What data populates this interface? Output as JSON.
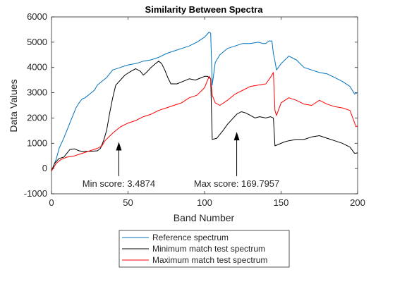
{
  "chart_data": {
    "type": "line",
    "title": "Similarity Between Spectra",
    "xlabel": "Band Number",
    "ylabel": "Data Values",
    "xlim": [
      0,
      200
    ],
    "ylim": [
      -1000,
      6000
    ],
    "xticks": [
      0,
      50,
      100,
      150,
      200
    ],
    "yticks": [
      -1000,
      0,
      1000,
      2000,
      3000,
      4000,
      5000,
      6000
    ],
    "xtick_labels": [
      "0",
      "50",
      "100",
      "150",
      "200"
    ],
    "ytick_labels": [
      "-1000",
      "0",
      "1000",
      "2000",
      "3000",
      "4000",
      "5000",
      "6000"
    ],
    "grid": false,
    "legend": "bottom-outside",
    "series": [
      {
        "name": "Reference spectrum",
        "color": "#0072BD",
        "points": [
          [
            0,
            -100
          ],
          [
            3,
            350
          ],
          [
            5,
            800
          ],
          [
            8,
            1200
          ],
          [
            10,
            1500
          ],
          [
            12,
            1800
          ],
          [
            14,
            2100
          ],
          [
            16,
            2400
          ],
          [
            18,
            2600
          ],
          [
            20,
            2750
          ],
          [
            22,
            2800
          ],
          [
            25,
            2950
          ],
          [
            28,
            3100
          ],
          [
            30,
            3300
          ],
          [
            33,
            3450
          ],
          [
            36,
            3600
          ],
          [
            40,
            3900
          ],
          [
            45,
            4000
          ],
          [
            50,
            4100
          ],
          [
            55,
            4150
          ],
          [
            60,
            4250
          ],
          [
            65,
            4300
          ],
          [
            70,
            4400
          ],
          [
            75,
            4550
          ],
          [
            80,
            4650
          ],
          [
            85,
            4750
          ],
          [
            90,
            4850
          ],
          [
            95,
            5000
          ],
          [
            100,
            5200
          ],
          [
            103,
            5400
          ],
          [
            104,
            5350
          ],
          [
            105,
            3300
          ],
          [
            107,
            4200
          ],
          [
            110,
            4500
          ],
          [
            115,
            4750
          ],
          [
            120,
            4850
          ],
          [
            125,
            4950
          ],
          [
            130,
            4950
          ],
          [
            135,
            5000
          ],
          [
            138,
            4950
          ],
          [
            140,
            4950
          ],
          [
            142,
            5050
          ],
          [
            144,
            5050
          ],
          [
            145,
            4550
          ],
          [
            146,
            4250
          ],
          [
            147,
            3900
          ],
          [
            150,
            4150
          ],
          [
            155,
            4450
          ],
          [
            160,
            4300
          ],
          [
            165,
            4000
          ],
          [
            170,
            3900
          ],
          [
            175,
            3800
          ],
          [
            180,
            3750
          ],
          [
            185,
            3600
          ],
          [
            190,
            3450
          ],
          [
            195,
            3250
          ],
          [
            198,
            2950
          ],
          [
            200,
            3000
          ]
        ]
      },
      {
        "name": "Minimum match test spectrum",
        "color": "#000000",
        "points": [
          [
            0,
            -100
          ],
          [
            2,
            200
          ],
          [
            5,
            400
          ],
          [
            8,
            450
          ],
          [
            10,
            600
          ],
          [
            12,
            750
          ],
          [
            15,
            780
          ],
          [
            18,
            700
          ],
          [
            20,
            680
          ],
          [
            25,
            680
          ],
          [
            30,
            700
          ],
          [
            32,
            800
          ],
          [
            34,
            1100
          ],
          [
            36,
            1500
          ],
          [
            38,
            2200
          ],
          [
            40,
            2800
          ],
          [
            42,
            3300
          ],
          [
            45,
            3500
          ],
          [
            48,
            3700
          ],
          [
            52,
            3850
          ],
          [
            55,
            3950
          ],
          [
            58,
            3850
          ],
          [
            60,
            3700
          ],
          [
            62,
            3800
          ],
          [
            65,
            4000
          ],
          [
            68,
            4150
          ],
          [
            70,
            4250
          ],
          [
            72,
            4150
          ],
          [
            74,
            3900
          ],
          [
            76,
            3600
          ],
          [
            78,
            3350
          ],
          [
            82,
            3350
          ],
          [
            86,
            3450
          ],
          [
            90,
            3550
          ],
          [
            94,
            3500
          ],
          [
            98,
            3600
          ],
          [
            100,
            3650
          ],
          [
            102,
            3650
          ],
          [
            104,
            3550
          ],
          [
            105,
            1150
          ],
          [
            108,
            1200
          ],
          [
            112,
            1500
          ],
          [
            115,
            1750
          ],
          [
            118,
            1950
          ],
          [
            121,
            2150
          ],
          [
            124,
            2250
          ],
          [
            127,
            2200
          ],
          [
            130,
            2100
          ],
          [
            133,
            2000
          ],
          [
            136,
            2050
          ],
          [
            140,
            2000
          ],
          [
            143,
            2050
          ],
          [
            145,
            2000
          ],
          [
            146,
            900
          ],
          [
            148,
            950
          ],
          [
            152,
            1050
          ],
          [
            155,
            1100
          ],
          [
            160,
            1150
          ],
          [
            165,
            1150
          ],
          [
            170,
            1250
          ],
          [
            175,
            1300
          ],
          [
            180,
            1200
          ],
          [
            185,
            1100
          ],
          [
            190,
            1000
          ],
          [
            195,
            850
          ],
          [
            198,
            600
          ],
          [
            200,
            620
          ]
        ]
      },
      {
        "name": "Maximum match test spectrum",
        "color": "#FF0000",
        "points": [
          [
            0,
            -100
          ],
          [
            3,
            200
          ],
          [
            6,
            350
          ],
          [
            10,
            450
          ],
          [
            15,
            500
          ],
          [
            20,
            600
          ],
          [
            25,
            700
          ],
          [
            30,
            800
          ],
          [
            33,
            900
          ],
          [
            35,
            1100
          ],
          [
            40,
            1400
          ],
          [
            45,
            1650
          ],
          [
            50,
            1800
          ],
          [
            55,
            1900
          ],
          [
            60,
            2050
          ],
          [
            65,
            2150
          ],
          [
            70,
            2300
          ],
          [
            75,
            2400
          ],
          [
            80,
            2500
          ],
          [
            85,
            2600
          ],
          [
            90,
            2800
          ],
          [
            95,
            2900
          ],
          [
            100,
            3200
          ],
          [
            103,
            3650
          ],
          [
            104,
            3550
          ],
          [
            105,
            2900
          ],
          [
            107,
            2600
          ],
          [
            110,
            2500
          ],
          [
            115,
            2700
          ],
          [
            120,
            2950
          ],
          [
            125,
            3100
          ],
          [
            130,
            3250
          ],
          [
            135,
            3300
          ],
          [
            140,
            3350
          ],
          [
            143,
            3600
          ],
          [
            145,
            3800
          ],
          [
            146,
            2300
          ],
          [
            147,
            2100
          ],
          [
            150,
            2600
          ],
          [
            155,
            2800
          ],
          [
            160,
            2700
          ],
          [
            165,
            2550
          ],
          [
            170,
            2500
          ],
          [
            175,
            2700
          ],
          [
            180,
            2550
          ],
          [
            185,
            2450
          ],
          [
            190,
            2400
          ],
          [
            195,
            2300
          ],
          [
            199,
            1650
          ],
          [
            200,
            1700
          ]
        ]
      }
    ],
    "annotations": [
      {
        "text": "Min score: 3.4874",
        "arrow_x": 44,
        "arrow_y_from": -300,
        "arrow_y_to": 1050
      },
      {
        "text": "Max score: 169.7957",
        "arrow_x": 121,
        "arrow_y_from": -300,
        "arrow_y_to": 1450
      }
    ]
  }
}
